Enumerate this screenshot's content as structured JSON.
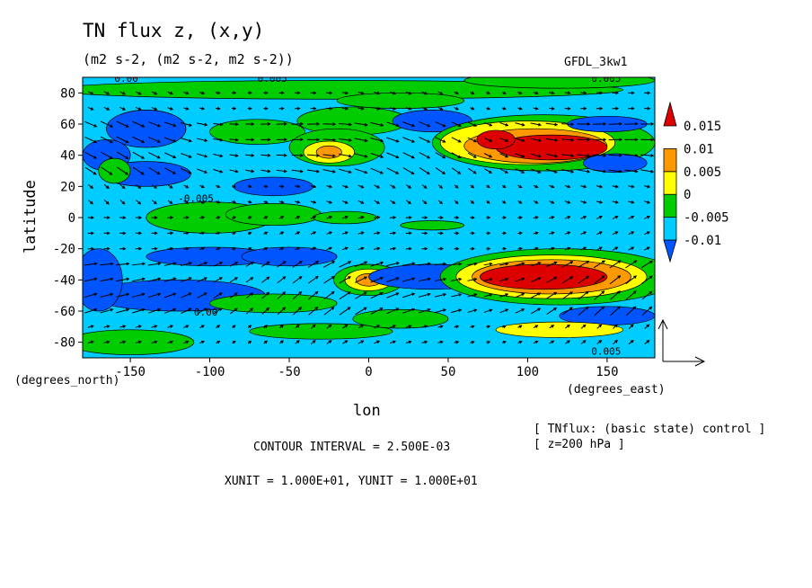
{
  "title": "TN flux z, (x,y)",
  "subtitle": "(m2 s-2, (m2 s-2, m2 s-2))",
  "model_label": "GFDL_3kw1",
  "chart_data": {
    "type": "heatmap",
    "title": "TN flux z, (x,y)",
    "subtitle": "(m2 s-2, (m2 s-2, m2 s-2))",
    "xlabel": "lon",
    "xunit_label": "(degrees_east)",
    "ylabel": "latitude",
    "yunit_label": "(degrees_north)",
    "xlim": [
      -180,
      180
    ],
    "ylim": [
      -90,
      90
    ],
    "xticks": [
      -150,
      -100,
      -50,
      0,
      50,
      100,
      150
    ],
    "yticks": [
      80,
      60,
      40,
      20,
      0,
      -20,
      -40,
      -60,
      -80
    ],
    "colorbar": {
      "levels": [
        "0.015",
        "0.01",
        "0.005",
        "0",
        "-0.005",
        "-0.01"
      ],
      "colors": [
        "#0055ff",
        "#00ccff",
        "#00cc00",
        "#ffff00",
        "#ff9900",
        "#dd0000"
      ]
    },
    "contour_labels": [
      "0.00",
      "0.005",
      "0.005",
      "-0.005",
      "0.00",
      "0.005"
    ],
    "vectors": "TN flux (x,y) arrows overlaid"
  },
  "footer": {
    "contour_interval": "CONTOUR INTERVAL = 2.500E-03",
    "units": "XUNIT = 1.000E+01, YUNIT = 1.000E+01",
    "note_line1": "[ TNflux: (basic state) control ]",
    "note_line2": "[ z=200 hPa ]"
  },
  "colors": {
    "strong_neg": "#0055ff",
    "neg": "#00ccff",
    "zero": "#00cc00",
    "pos": "#ffff00",
    "strong_pos": "#ff9900",
    "max_pos": "#dd0000"
  }
}
